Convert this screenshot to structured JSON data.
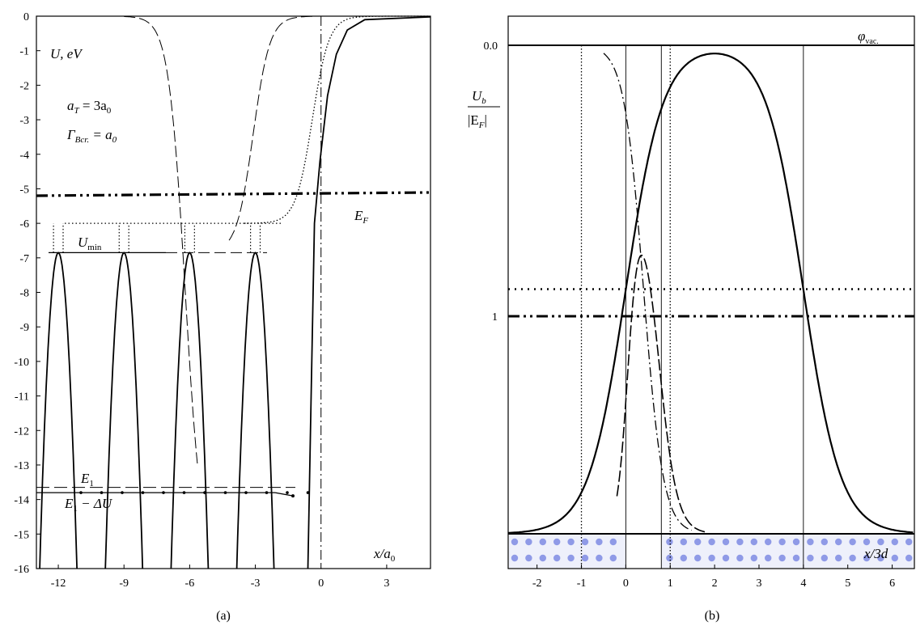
{
  "chart_data": [
    {
      "panel": "(a)",
      "type": "line",
      "xlabel_main": "x/a",
      "xlabel_sub": "0",
      "ylabel": "U, eV",
      "xlim": [
        -13,
        5
      ],
      "ylim": [
        -16,
        0
      ],
      "xticks": [
        "-12",
        "-9",
        "-6",
        "-3",
        "0",
        "3"
      ],
      "yticks": [
        "0",
        "-1",
        "-2",
        "-3",
        "-4",
        "-5",
        "-6",
        "-7",
        "-8",
        "-9",
        "-10",
        "-11",
        "-12",
        "-13",
        "-14",
        "-15",
        "-16"
      ],
      "annotations": {
        "aT_main": "a",
        "aT_sub": "T",
        "aT_rest": " = 3a",
        "aT_rest_sub": "0",
        "gamma_main": "Γ",
        "gamma_sub": "Bcr.",
        "gamma_rest": " = a",
        "gamma_rest_sub": "0",
        "EF_main": "E",
        "EF_sub": "F",
        "Umin_main": "U",
        "Umin_sub": "min",
        "E1_main": "E",
        "E1_sub": "1",
        "E1dU_main": "E",
        "E1dU_sub": "1",
        "E1dU_rest": " − ΔU"
      },
      "levels": {
        "E_F": -5.2,
        "U_min": -6.85,
        "dotted_level": -6.0,
        "E_1": -13.65,
        "E1_minus_dU": -13.8
      },
      "well_centers": [
        -12,
        -9,
        -6,
        -3
      ],
      "caption": "(a)"
    },
    {
      "panel": "(b)",
      "type": "line",
      "xlabel": "x/3d",
      "ylabel_num_main": "U",
      "ylabel_num_sub": "b",
      "ylabel_den_main": "|E",
      "ylabel_den_sub": "F",
      "ylabel_den_end": "|",
      "xlim": [
        -2.65,
        6.5
      ],
      "xticks": [
        "-2",
        "-1",
        "0",
        "1",
        "2",
        "3",
        "4",
        "5",
        "6"
      ],
      "yticks": [
        "0.0",
        "1"
      ],
      "vac_main": "φ",
      "vac_sub": "vac.",
      "levels": {
        "vacuum": 0.0,
        "dash_dot": 1.0,
        "dotted": 0.9
      },
      "vertical_lines": [
        -1,
        0,
        0.8,
        1,
        4
      ],
      "caption": "(b)"
    }
  ]
}
